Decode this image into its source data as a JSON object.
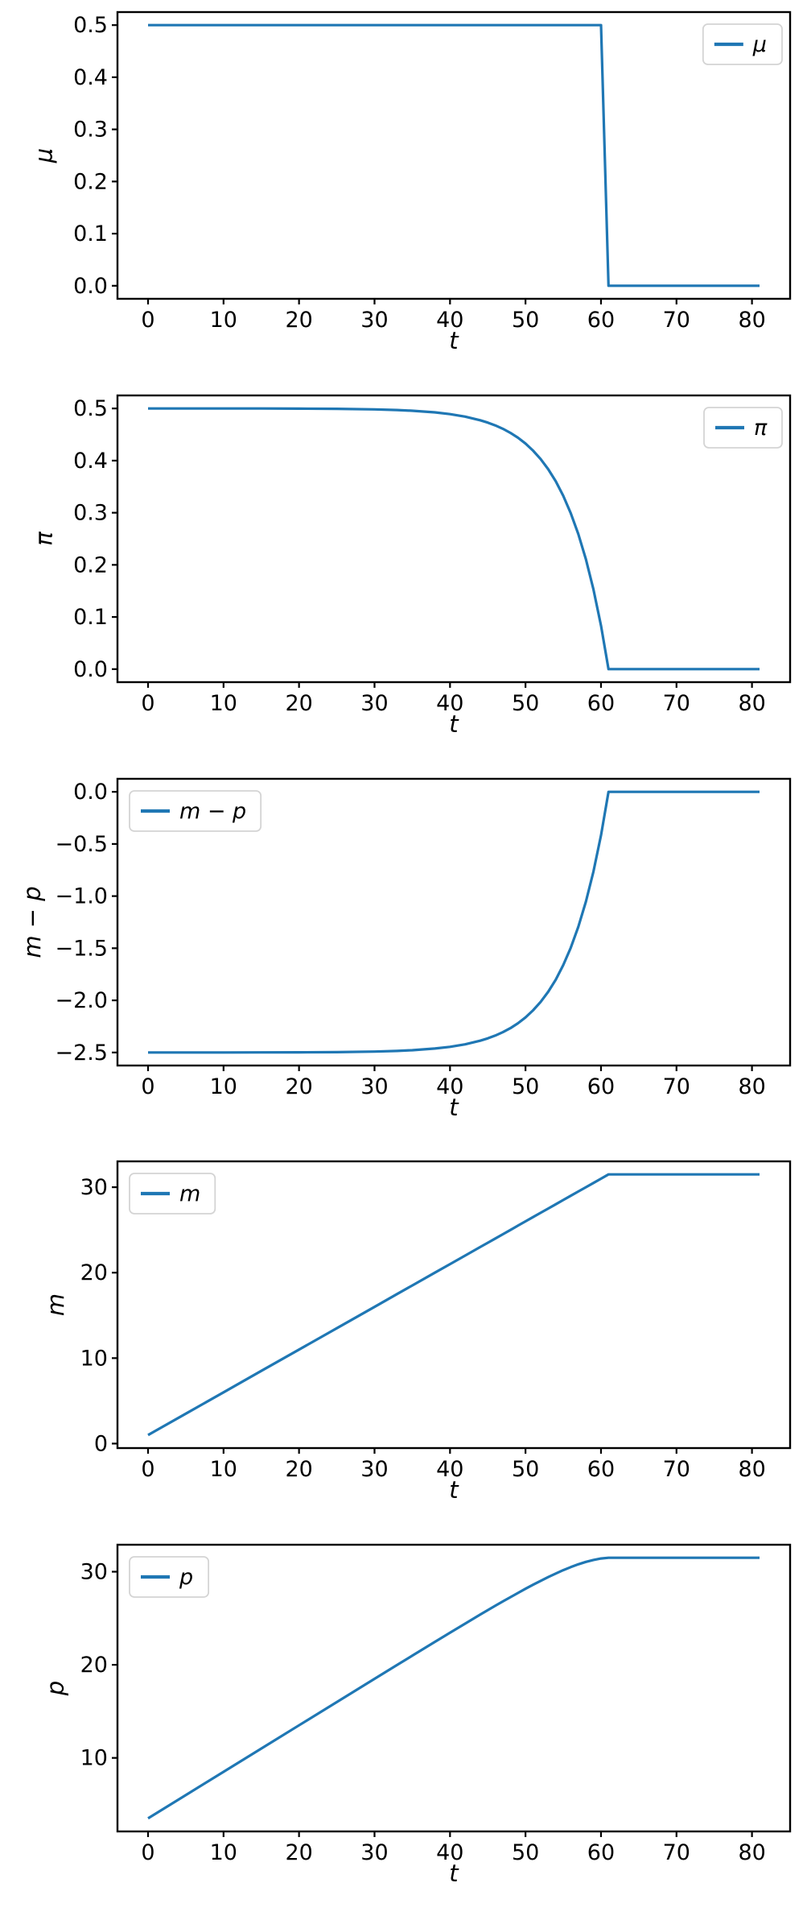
{
  "accent_color": "#1f77b4",
  "background_color": "#ffffff",
  "figure": {
    "kind": "multi-panel-line-figure",
    "panel_count": 5,
    "shared_xlabel": "t"
  },
  "chart_data": [
    {
      "id": "mu",
      "type": "line",
      "title": "",
      "xlabel": "t",
      "ylabel": "μ",
      "legend": {
        "label": "μ",
        "position": "upper-right"
      },
      "line_color": "#1f77b4",
      "grid": false,
      "x": [
        0,
        5,
        10,
        15,
        20,
        25,
        30,
        33,
        35,
        38,
        40,
        42,
        44,
        45,
        46,
        47,
        48,
        49,
        50,
        51,
        52,
        53,
        54,
        55,
        56,
        57,
        58,
        59,
        60,
        61,
        62,
        65,
        70,
        75,
        81
      ],
      "y": [
        0.5,
        0.5,
        0.5,
        0.5,
        0.5,
        0.5,
        0.5,
        0.5,
        0.5,
        0.5,
        0.5,
        0.5,
        0.5,
        0.5,
        0.5,
        0.5,
        0.5,
        0.5,
        0.5,
        0.5,
        0.5,
        0.5,
        0.5,
        0.5,
        0.5,
        0.5,
        0.5,
        0.5,
        0.5,
        0,
        0,
        0,
        0,
        0,
        0
      ],
      "xlim": [
        -4.05,
        85.05
      ],
      "ylim": [
        -0.025,
        0.525
      ],
      "x_ticks": [
        0,
        10,
        20,
        30,
        40,
        50,
        60,
        70,
        80
      ],
      "x_tick_labels": [
        "0",
        "10",
        "20",
        "30",
        "40",
        "50",
        "60",
        "70",
        "80"
      ],
      "y_ticks": [
        0,
        0.1,
        0.2,
        0.3,
        0.4,
        0.5
      ],
      "y_tick_labels": [
        "0.0",
        "0.1",
        "0.2",
        "0.3",
        "0.4",
        "0.5"
      ]
    },
    {
      "id": "pi",
      "type": "line",
      "title": "",
      "xlabel": "t",
      "ylabel": "π",
      "legend": {
        "label": "π",
        "position": "upper-right"
      },
      "line_color": "#1f77b4",
      "grid": false,
      "x": [
        0,
        5,
        10,
        15,
        20,
        25,
        30,
        33,
        35,
        38,
        40,
        42,
        44,
        45,
        46,
        47,
        48,
        49,
        50,
        51,
        52,
        53,
        54,
        55,
        56,
        57,
        58,
        59,
        60,
        61,
        62,
        65,
        70,
        75,
        81
      ],
      "y": [
        0.5,
        0.5,
        0.5,
        0.4999,
        0.4997,
        0.4993,
        0.4982,
        0.497,
        0.4956,
        0.4925,
        0.4891,
        0.4844,
        0.4774,
        0.473,
        0.4676,
        0.4611,
        0.4532,
        0.4439,
        0.4327,
        0.4192,
        0.4031,
        0.3837,
        0.3605,
        0.3326,
        0.299,
        0.2589,
        0.2107,
        0.1528,
        0.0833,
        0,
        0,
        0,
        0,
        0,
        0
      ],
      "xlim": [
        -4.05,
        85.05
      ],
      "ylim": [
        -0.025,
        0.525
      ],
      "x_ticks": [
        0,
        10,
        20,
        30,
        40,
        50,
        60,
        70,
        80
      ],
      "x_tick_labels": [
        "0",
        "10",
        "20",
        "30",
        "40",
        "50",
        "60",
        "70",
        "80"
      ],
      "y_ticks": [
        0,
        0.1,
        0.2,
        0.3,
        0.4,
        0.5
      ],
      "y_tick_labels": [
        "0.0",
        "0.1",
        "0.2",
        "0.3",
        "0.4",
        "0.5"
      ]
    },
    {
      "id": "m-minus-p",
      "type": "line",
      "title": "",
      "xlabel": "t",
      "ylabel": "m − p",
      "legend": {
        "label": "m − p",
        "position": "upper-left"
      },
      "line_color": "#1f77b4",
      "grid": false,
      "x": [
        0,
        5,
        10,
        15,
        20,
        25,
        30,
        33,
        35,
        38,
        40,
        42,
        44,
        45,
        46,
        47,
        48,
        49,
        50,
        51,
        52,
        53,
        54,
        55,
        56,
        57,
        58,
        59,
        60,
        61,
        62,
        65,
        70,
        75,
        81
      ],
      "y": [
        -2.5,
        -2.5,
        -2.5,
        -2.4994,
        -2.4986,
        -2.4965,
        -2.4912,
        -2.4848,
        -2.4781,
        -2.4622,
        -2.4457,
        -2.4218,
        -2.3872,
        -2.3647,
        -2.3377,
        -2.3053,
        -2.2662,
        -2.2195,
        -2.1635,
        -2.0962,
        -2.0155,
        -1.9185,
        -1.8022,
        -1.6627,
        -1.4952,
        -1.2942,
        -1.0532,
        -0.764,
        -0.4167,
        0,
        0,
        0,
        0,
        0,
        0
      ],
      "xlim": [
        -4.05,
        85.05
      ],
      "ylim": [
        -2.625,
        0.125
      ],
      "x_ticks": [
        0,
        10,
        20,
        30,
        40,
        50,
        60,
        70,
        80
      ],
      "x_tick_labels": [
        "0",
        "10",
        "20",
        "30",
        "40",
        "50",
        "60",
        "70",
        "80"
      ],
      "y_ticks": [
        -2.5,
        -2,
        -1.5,
        -1,
        -0.5,
        0
      ],
      "y_tick_labels": [
        "−2.5",
        "−2.0",
        "−1.5",
        "−1.0",
        "−0.5",
        "0.0"
      ]
    },
    {
      "id": "m",
      "type": "line",
      "title": "",
      "xlabel": "t",
      "ylabel": "m",
      "legend": {
        "label": "m",
        "position": "upper-left"
      },
      "line_color": "#1f77b4",
      "grid": false,
      "x": [
        0,
        5,
        10,
        15,
        20,
        25,
        30,
        33,
        35,
        38,
        40,
        42,
        44,
        45,
        46,
        47,
        48,
        49,
        50,
        51,
        52,
        53,
        54,
        55,
        56,
        57,
        58,
        59,
        60,
        61,
        62,
        65,
        70,
        75,
        81
      ],
      "y": [
        1,
        3.5,
        6,
        8.5,
        11,
        13.5,
        16,
        17.5,
        18.5,
        20,
        21,
        22,
        23,
        23.5,
        24,
        24.5,
        25,
        25.5,
        26,
        26.5,
        27,
        27.5,
        28,
        28.5,
        29,
        29.5,
        30,
        30.5,
        31,
        31.5,
        31.5,
        31.5,
        31.5,
        31.5,
        31.5
      ],
      "xlim": [
        -4.05,
        85.05
      ],
      "ylim": [
        -0.525,
        33.025
      ],
      "x_ticks": [
        0,
        10,
        20,
        30,
        40,
        50,
        60,
        70,
        80
      ],
      "x_tick_labels": [
        "0",
        "10",
        "20",
        "30",
        "40",
        "50",
        "60",
        "70",
        "80"
      ],
      "y_ticks": [
        0,
        10,
        20,
        30
      ],
      "y_tick_labels": [
        "0",
        "10",
        "20",
        "30"
      ]
    },
    {
      "id": "p",
      "type": "line",
      "title": "",
      "xlabel": "t",
      "ylabel": "p",
      "legend": {
        "label": "p",
        "position": "upper-left"
      },
      "line_color": "#1f77b4",
      "grid": false,
      "x": [
        0,
        5,
        10,
        15,
        20,
        25,
        30,
        33,
        35,
        38,
        40,
        42,
        44,
        45,
        46,
        47,
        48,
        49,
        50,
        51,
        52,
        53,
        54,
        55,
        56,
        57,
        58,
        59,
        60,
        61,
        62,
        65,
        70,
        75,
        81
      ],
      "y": [
        3.5,
        6,
        8.5,
        10.999,
        13.499,
        15.997,
        18.491,
        19.985,
        20.978,
        22.462,
        23.446,
        24.422,
        25.387,
        25.865,
        26.338,
        26.805,
        27.266,
        27.72,
        28.164,
        28.596,
        29.016,
        29.419,
        29.802,
        30.163,
        30.495,
        30.794,
        31.053,
        31.264,
        31.417,
        31.5,
        31.5,
        31.5,
        31.5,
        31.5,
        31.5
      ],
      "xlim": [
        -4.05,
        85.05
      ],
      "ylim": [
        2.1,
        32.9
      ],
      "x_ticks": [
        0,
        10,
        20,
        30,
        40,
        50,
        60,
        70,
        80
      ],
      "x_tick_labels": [
        "0",
        "10",
        "20",
        "30",
        "40",
        "50",
        "60",
        "70",
        "80"
      ],
      "y_ticks": [
        10,
        20,
        30
      ],
      "y_tick_labels": [
        "10",
        "20",
        "30"
      ]
    }
  ]
}
